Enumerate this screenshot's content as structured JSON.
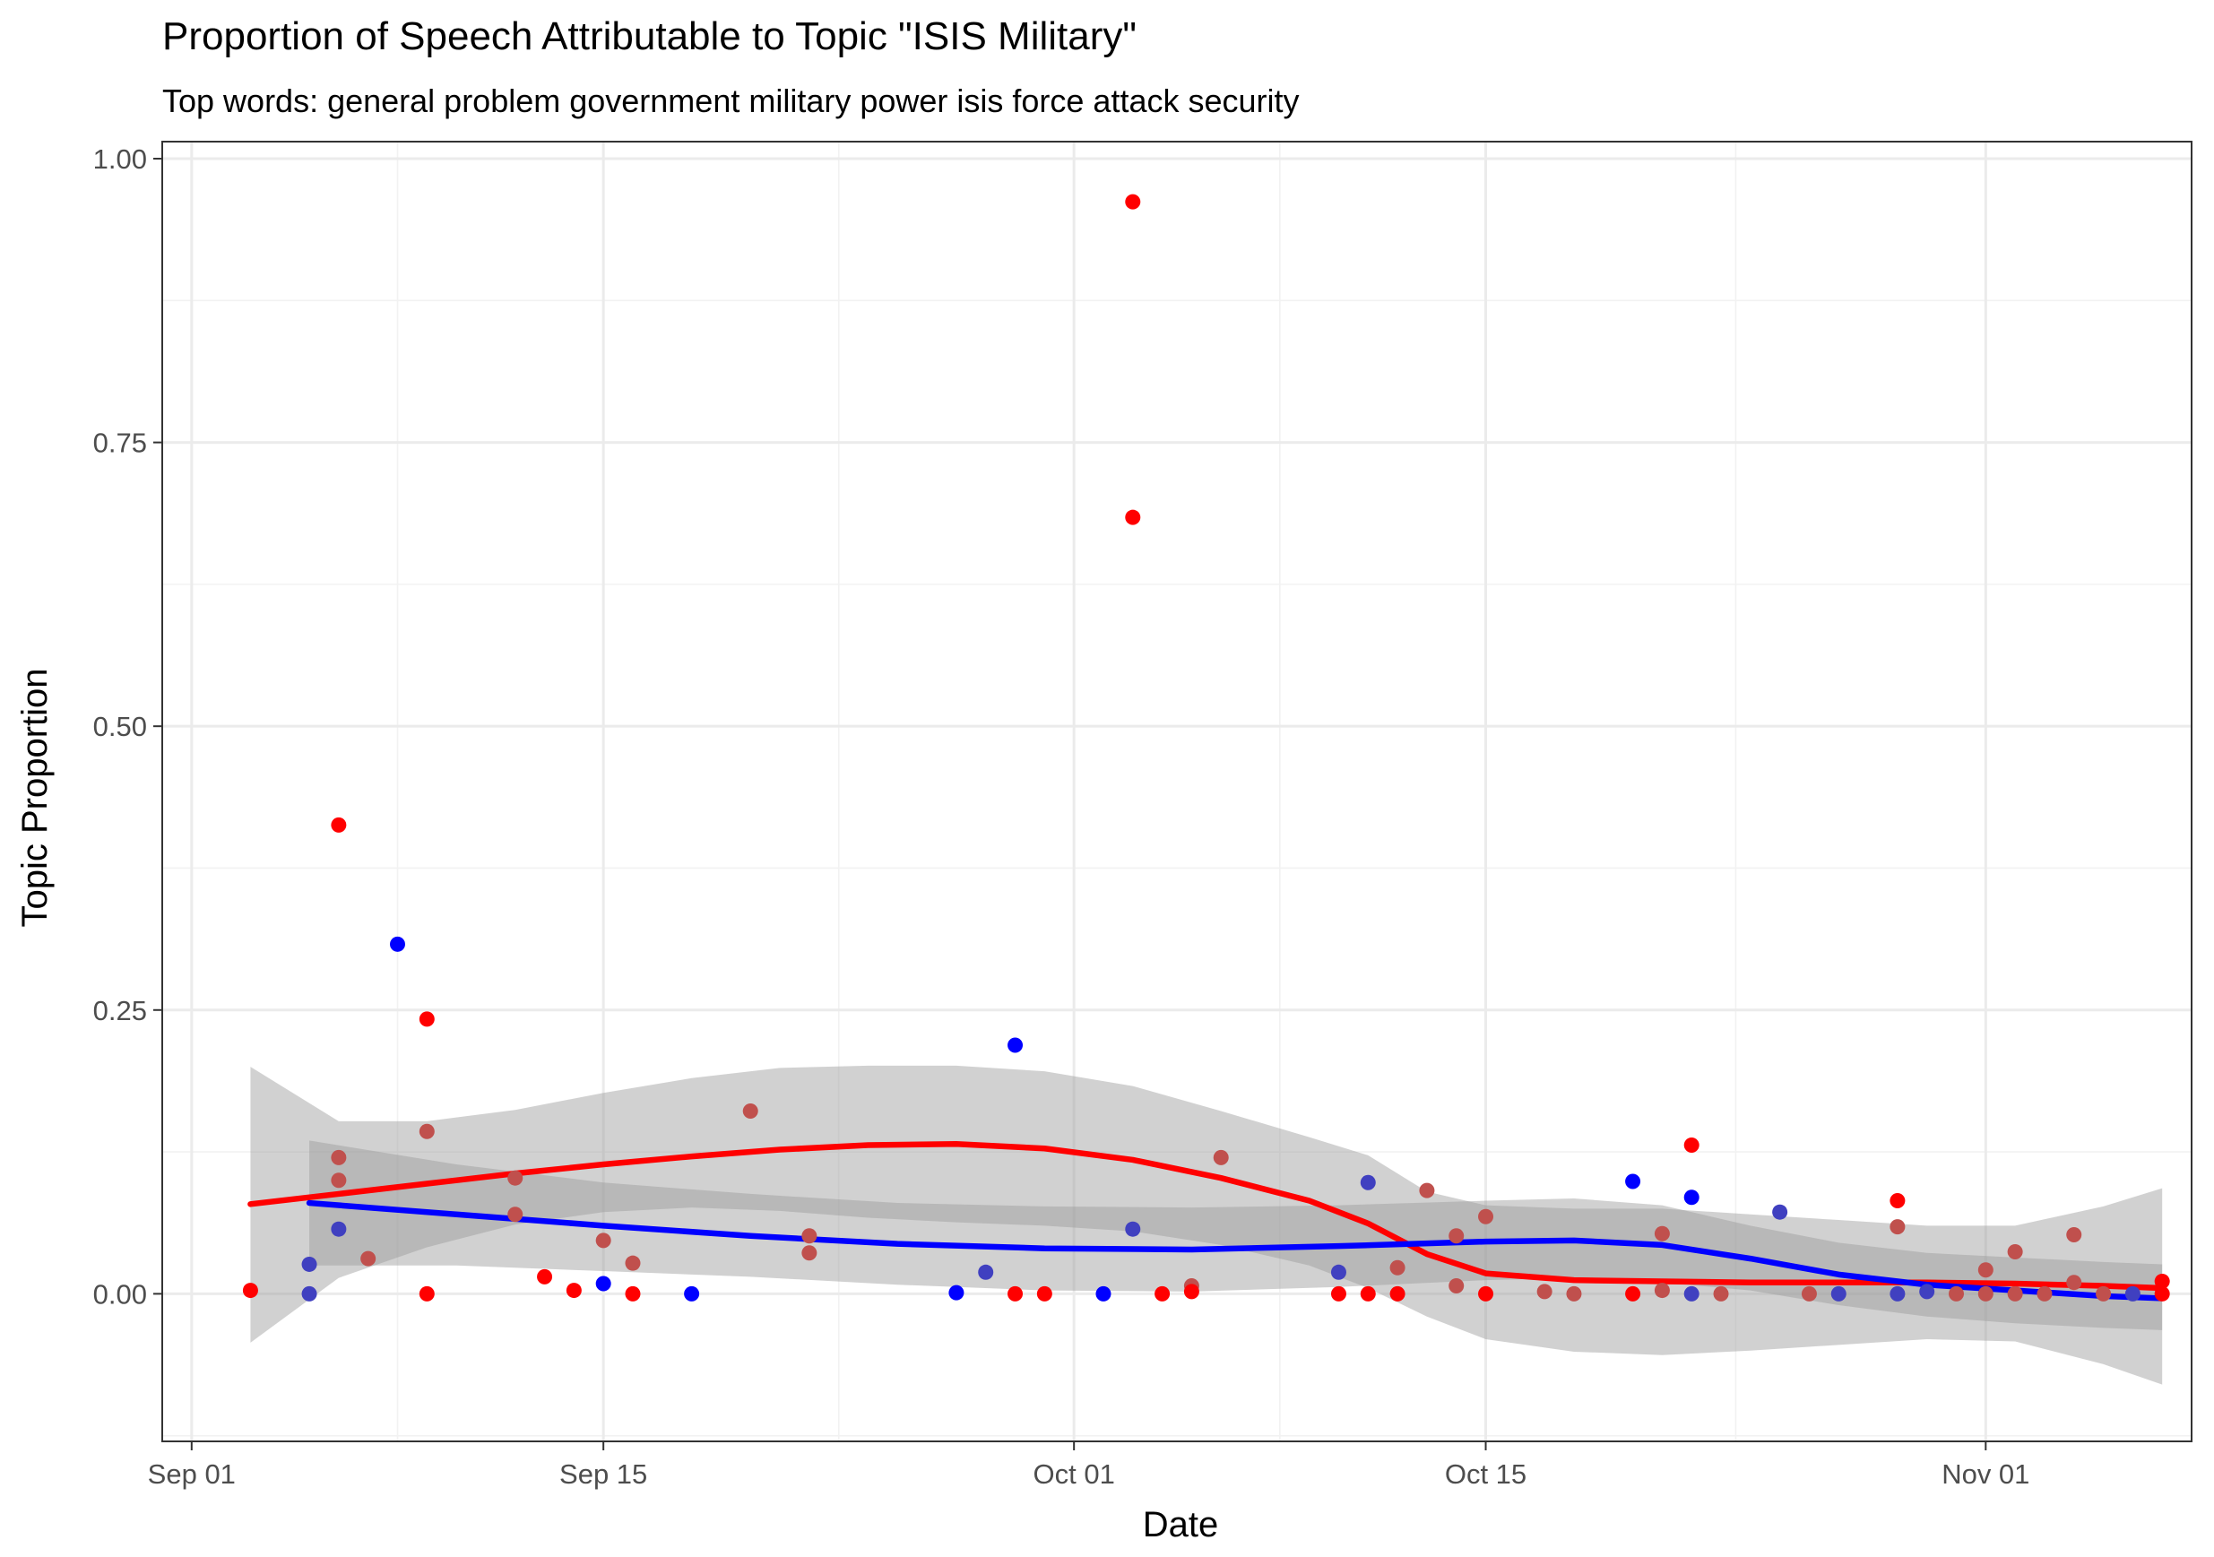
{
  "chart_data": {
    "type": "scatter",
    "title": "Proportion of Speech Attributable to Topic \"ISIS Military\"",
    "subtitle": "Top words: general problem government military power isis force attack security",
    "xlabel": "Date",
    "ylabel": "Topic Proportion",
    "x_ticks": [
      {
        "date": "2015-09-01",
        "label": "Sep 01"
      },
      {
        "date": "2015-09-15",
        "label": "Sep 15"
      },
      {
        "date": "2015-10-01",
        "label": "Oct 01"
      },
      {
        "date": "2015-10-15",
        "label": "Oct 15"
      },
      {
        "date": "2015-11-01",
        "label": "Nov 01"
      }
    ],
    "y_ticks": [
      {
        "value": 0,
        "label": "0.00"
      },
      {
        "value": 0.25,
        "label": "0.25"
      },
      {
        "value": 0.5,
        "label": "0.50"
      },
      {
        "value": 0.75,
        "label": "0.75"
      },
      {
        "value": 1,
        "label": "1.00"
      }
    ],
    "xlim": [
      "2015-08-31",
      "2015-11-08"
    ],
    "ylim": [
      -0.13,
      1.015
    ],
    "grid": true,
    "legend": "none",
    "colors": {
      "red": "#ff0000",
      "blue": "#0000ff",
      "mixed": "#c0504d",
      "mixed_blue": "#4040c0",
      "band": "#999999"
    },
    "series": [
      {
        "color": "#ff0000",
        "points": [
          {
            "x": "2015-09-03",
            "y": 0.003,
            "tone": "red"
          },
          {
            "x": "2015-09-06",
            "y": 0.413,
            "tone": "red"
          },
          {
            "x": "2015-09-06",
            "y": 0.12,
            "tone": "mixed"
          },
          {
            "x": "2015-09-06",
            "y": 0.1,
            "tone": "mixed"
          },
          {
            "x": "2015-09-07",
            "y": 0.031,
            "tone": "mixed"
          },
          {
            "x": "2015-09-09",
            "y": 0.242,
            "tone": "red"
          },
          {
            "x": "2015-09-09",
            "y": 0.143,
            "tone": "mixed"
          },
          {
            "x": "2015-09-09",
            "y": 0.0,
            "tone": "red"
          },
          {
            "x": "2015-09-12",
            "y": 0.102,
            "tone": "mixed"
          },
          {
            "x": "2015-09-12",
            "y": 0.07,
            "tone": "mixed"
          },
          {
            "x": "2015-09-13",
            "y": 0.015,
            "tone": "red"
          },
          {
            "x": "2015-09-14",
            "y": 0.003,
            "tone": "red"
          },
          {
            "x": "2015-09-15",
            "y": 0.047,
            "tone": "mixed"
          },
          {
            "x": "2015-09-16",
            "y": 0.027,
            "tone": "mixed"
          },
          {
            "x": "2015-09-16",
            "y": 0.0,
            "tone": "red"
          },
          {
            "x": "2015-09-20",
            "y": 0.161,
            "tone": "mixed"
          },
          {
            "x": "2015-09-22",
            "y": 0.051,
            "tone": "mixed"
          },
          {
            "x": "2015-09-22",
            "y": 0.036,
            "tone": "mixed"
          },
          {
            "x": "2015-09-29",
            "y": 0.0,
            "tone": "red"
          },
          {
            "x": "2015-09-30",
            "y": 0.0,
            "tone": "red"
          },
          {
            "x": "2015-10-03",
            "y": 0.962,
            "tone": "red"
          },
          {
            "x": "2015-10-03",
            "y": 0.684,
            "tone": "red"
          },
          {
            "x": "2015-10-04",
            "y": 0.0,
            "tone": "red"
          },
          {
            "x": "2015-10-05",
            "y": 0.007,
            "tone": "mixed"
          },
          {
            "x": "2015-10-05",
            "y": 0.002,
            "tone": "red"
          },
          {
            "x": "2015-10-06",
            "y": 0.12,
            "tone": "mixed"
          },
          {
            "x": "2015-10-10",
            "y": 0.0,
            "tone": "red"
          },
          {
            "x": "2015-10-11",
            "y": 0.0,
            "tone": "red"
          },
          {
            "x": "2015-10-12",
            "y": 0.023,
            "tone": "mixed"
          },
          {
            "x": "2015-10-12",
            "y": 0.0,
            "tone": "red"
          },
          {
            "x": "2015-10-13",
            "y": 0.091,
            "tone": "mixed"
          },
          {
            "x": "2015-10-14",
            "y": 0.051,
            "tone": "mixed"
          },
          {
            "x": "2015-10-14",
            "y": 0.007,
            "tone": "mixed"
          },
          {
            "x": "2015-10-15",
            "y": 0.068,
            "tone": "mixed"
          },
          {
            "x": "2015-10-15",
            "y": 0.0,
            "tone": "red"
          },
          {
            "x": "2015-10-17",
            "y": 0.002,
            "tone": "mixed"
          },
          {
            "x": "2015-10-18",
            "y": 0.0,
            "tone": "mixed"
          },
          {
            "x": "2015-10-20",
            "y": 0.0,
            "tone": "red"
          },
          {
            "x": "2015-10-21",
            "y": 0.053,
            "tone": "mixed"
          },
          {
            "x": "2015-10-21",
            "y": 0.003,
            "tone": "mixed"
          },
          {
            "x": "2015-10-22",
            "y": 0.131,
            "tone": "red"
          },
          {
            "x": "2015-10-23",
            "y": 0.0,
            "tone": "mixed"
          },
          {
            "x": "2015-10-26",
            "y": 0.0,
            "tone": "mixed"
          },
          {
            "x": "2015-10-29",
            "y": 0.082,
            "tone": "red"
          },
          {
            "x": "2015-10-29",
            "y": 0.059,
            "tone": "mixed"
          },
          {
            "x": "2015-10-31",
            "y": 0.0,
            "tone": "mixed"
          },
          {
            "x": "2015-11-01",
            "y": 0.021,
            "tone": "mixed"
          },
          {
            "x": "2015-11-01",
            "y": 0.0,
            "tone": "mixed"
          },
          {
            "x": "2015-11-02",
            "y": 0.037,
            "tone": "mixed"
          },
          {
            "x": "2015-11-02",
            "y": 0.0,
            "tone": "mixed"
          },
          {
            "x": "2015-11-03",
            "y": 0.0,
            "tone": "mixed"
          },
          {
            "x": "2015-11-04",
            "y": 0.052,
            "tone": "mixed"
          },
          {
            "x": "2015-11-04",
            "y": 0.01,
            "tone": "mixed"
          },
          {
            "x": "2015-11-05",
            "y": 0.0,
            "tone": "mixed"
          },
          {
            "x": "2015-11-07",
            "y": 0.011,
            "tone": "red"
          },
          {
            "x": "2015-11-07",
            "y": 0.0,
            "tone": "red"
          }
        ],
        "trend": [
          {
            "x": "2015-09-03",
            "y": 0.079
          },
          {
            "x": "2015-09-06",
            "y": 0.088
          },
          {
            "x": "2015-09-09",
            "y": 0.097
          },
          {
            "x": "2015-09-12",
            "y": 0.106
          },
          {
            "x": "2015-09-15",
            "y": 0.114
          },
          {
            "x": "2015-09-18",
            "y": 0.121
          },
          {
            "x": "2015-09-21",
            "y": 0.127
          },
          {
            "x": "2015-09-24",
            "y": 0.131
          },
          {
            "x": "2015-09-27",
            "y": 0.132
          },
          {
            "x": "2015-09-30",
            "y": 0.128
          },
          {
            "x": "2015-10-03",
            "y": 0.118
          },
          {
            "x": "2015-10-06",
            "y": 0.102
          },
          {
            "x": "2015-10-09",
            "y": 0.082
          },
          {
            "x": "2015-10-11",
            "y": 0.062
          },
          {
            "x": "2015-10-13",
            "y": 0.035
          },
          {
            "x": "2015-10-15",
            "y": 0.018
          },
          {
            "x": "2015-10-18",
            "y": 0.012
          },
          {
            "x": "2015-10-21",
            "y": 0.011
          },
          {
            "x": "2015-10-24",
            "y": 0.01
          },
          {
            "x": "2015-10-27",
            "y": 0.01
          },
          {
            "x": "2015-10-30",
            "y": 0.01
          },
          {
            "x": "2015-11-02",
            "y": 0.009
          },
          {
            "x": "2015-11-05",
            "y": 0.007
          },
          {
            "x": "2015-11-07",
            "y": 0.005
          }
        ],
        "band": [
          {
            "x": "2015-09-03",
            "lo": -0.043,
            "hi": 0.2
          },
          {
            "x": "2015-09-06",
            "lo": 0.014,
            "hi": 0.152
          },
          {
            "x": "2015-09-09",
            "lo": 0.041,
            "hi": 0.152
          },
          {
            "x": "2015-09-12",
            "lo": 0.061,
            "hi": 0.162
          },
          {
            "x": "2015-09-15",
            "lo": 0.072,
            "hi": 0.177
          },
          {
            "x": "2015-09-18",
            "lo": 0.076,
            "hi": 0.19
          },
          {
            "x": "2015-09-21",
            "lo": 0.073,
            "hi": 0.199
          },
          {
            "x": "2015-09-24",
            "lo": 0.067,
            "hi": 0.201
          },
          {
            "x": "2015-09-27",
            "lo": 0.063,
            "hi": 0.201
          },
          {
            "x": "2015-09-30",
            "lo": 0.06,
            "hi": 0.196
          },
          {
            "x": "2015-10-03",
            "lo": 0.055,
            "hi": 0.183
          },
          {
            "x": "2015-10-06",
            "lo": 0.043,
            "hi": 0.161
          },
          {
            "x": "2015-10-09",
            "lo": 0.025,
            "hi": 0.138
          },
          {
            "x": "2015-10-11",
            "lo": 0.005,
            "hi": 0.122
          },
          {
            "x": "2015-10-13",
            "lo": -0.02,
            "hi": 0.09
          },
          {
            "x": "2015-10-15",
            "lo": -0.04,
            "hi": 0.078
          },
          {
            "x": "2015-10-18",
            "lo": -0.051,
            "hi": 0.075
          },
          {
            "x": "2015-10-21",
            "lo": -0.054,
            "hi": 0.075
          },
          {
            "x": "2015-10-24",
            "lo": -0.05,
            "hi": 0.07
          },
          {
            "x": "2015-10-27",
            "lo": -0.045,
            "hi": 0.065
          },
          {
            "x": "2015-10-30",
            "lo": -0.04,
            "hi": 0.06
          },
          {
            "x": "2015-11-02",
            "lo": -0.042,
            "hi": 0.06
          },
          {
            "x": "2015-11-05",
            "lo": -0.062,
            "hi": 0.077
          },
          {
            "x": "2015-11-07",
            "lo": -0.08,
            "hi": 0.093
          }
        ]
      },
      {
        "color": "#0000ff",
        "points": [
          {
            "x": "2015-09-05",
            "y": 0.026,
            "tone": "mixed_blue"
          },
          {
            "x": "2015-09-05",
            "y": 0.0,
            "tone": "mixed_blue"
          },
          {
            "x": "2015-09-06",
            "y": 0.057,
            "tone": "mixed_blue"
          },
          {
            "x": "2015-09-08",
            "y": 0.308,
            "tone": "blue"
          },
          {
            "x": "2015-09-15",
            "y": 0.009,
            "tone": "blue"
          },
          {
            "x": "2015-09-18",
            "y": 0.0,
            "tone": "blue"
          },
          {
            "x": "2015-09-27",
            "y": 0.001,
            "tone": "blue"
          },
          {
            "x": "2015-09-28",
            "y": 0.019,
            "tone": "mixed_blue"
          },
          {
            "x": "2015-09-29",
            "y": 0.219,
            "tone": "blue"
          },
          {
            "x": "2015-10-02",
            "y": 0.0,
            "tone": "blue"
          },
          {
            "x": "2015-10-03",
            "y": 0.057,
            "tone": "mixed_blue"
          },
          {
            "x": "2015-10-10",
            "y": 0.019,
            "tone": "mixed_blue"
          },
          {
            "x": "2015-10-11",
            "y": 0.098,
            "tone": "mixed_blue"
          },
          {
            "x": "2015-10-20",
            "y": 0.099,
            "tone": "blue"
          },
          {
            "x": "2015-10-22",
            "y": 0.085,
            "tone": "blue"
          },
          {
            "x": "2015-10-22",
            "y": 0.0,
            "tone": "mixed_blue"
          },
          {
            "x": "2015-10-25",
            "y": 0.072,
            "tone": "mixed_blue"
          },
          {
            "x": "2015-10-27",
            "y": 0.0,
            "tone": "mixed_blue"
          },
          {
            "x": "2015-10-29",
            "y": 0.0,
            "tone": "mixed_blue"
          },
          {
            "x": "2015-10-30",
            "y": 0.002,
            "tone": "mixed_blue"
          },
          {
            "x": "2015-11-06",
            "y": 0.0,
            "tone": "mixed_blue"
          }
        ],
        "trend": [
          {
            "x": "2015-09-05",
            "y": 0.08
          },
          {
            "x": "2015-09-10",
            "y": 0.07
          },
          {
            "x": "2015-09-15",
            "y": 0.06
          },
          {
            "x": "2015-09-20",
            "y": 0.051
          },
          {
            "x": "2015-09-25",
            "y": 0.044
          },
          {
            "x": "2015-09-30",
            "y": 0.04
          },
          {
            "x": "2015-10-05",
            "y": 0.039
          },
          {
            "x": "2015-10-10",
            "y": 0.042
          },
          {
            "x": "2015-10-15",
            "y": 0.046
          },
          {
            "x": "2015-10-18",
            "y": 0.047
          },
          {
            "x": "2015-10-21",
            "y": 0.043
          },
          {
            "x": "2015-10-24",
            "y": 0.031
          },
          {
            "x": "2015-10-27",
            "y": 0.017
          },
          {
            "x": "2015-10-30",
            "y": 0.008
          },
          {
            "x": "2015-11-02",
            "y": 0.003
          },
          {
            "x": "2015-11-05",
            "y": -0.002
          },
          {
            "x": "2015-11-07",
            "y": -0.004
          }
        ],
        "band": [
          {
            "x": "2015-09-05",
            "lo": 0.025,
            "hi": 0.135
          },
          {
            "x": "2015-09-10",
            "lo": 0.025,
            "hi": 0.114
          },
          {
            "x": "2015-09-15",
            "lo": 0.02,
            "hi": 0.098
          },
          {
            "x": "2015-09-20",
            "lo": 0.015,
            "hi": 0.088
          },
          {
            "x": "2015-09-25",
            "lo": 0.008,
            "hi": 0.08
          },
          {
            "x": "2015-09-30",
            "lo": 0.003,
            "hi": 0.077
          },
          {
            "x": "2015-10-05",
            "lo": 0.002,
            "hi": 0.076
          },
          {
            "x": "2015-10-10",
            "lo": 0.006,
            "hi": 0.078
          },
          {
            "x": "2015-10-15",
            "lo": 0.012,
            "hi": 0.082
          },
          {
            "x": "2015-10-18",
            "lo": 0.014,
            "hi": 0.084
          },
          {
            "x": "2015-10-21",
            "lo": 0.01,
            "hi": 0.078
          },
          {
            "x": "2015-10-24",
            "lo": 0.003,
            "hi": 0.06
          },
          {
            "x": "2015-10-27",
            "lo": -0.01,
            "hi": 0.045
          },
          {
            "x": "2015-10-30",
            "lo": -0.02,
            "hi": 0.036
          },
          {
            "x": "2015-11-02",
            "lo": -0.026,
            "hi": 0.032
          },
          {
            "x": "2015-11-05",
            "lo": -0.03,
            "hi": 0.028
          },
          {
            "x": "2015-11-07",
            "lo": -0.032,
            "hi": 0.026
          }
        ]
      }
    ]
  }
}
